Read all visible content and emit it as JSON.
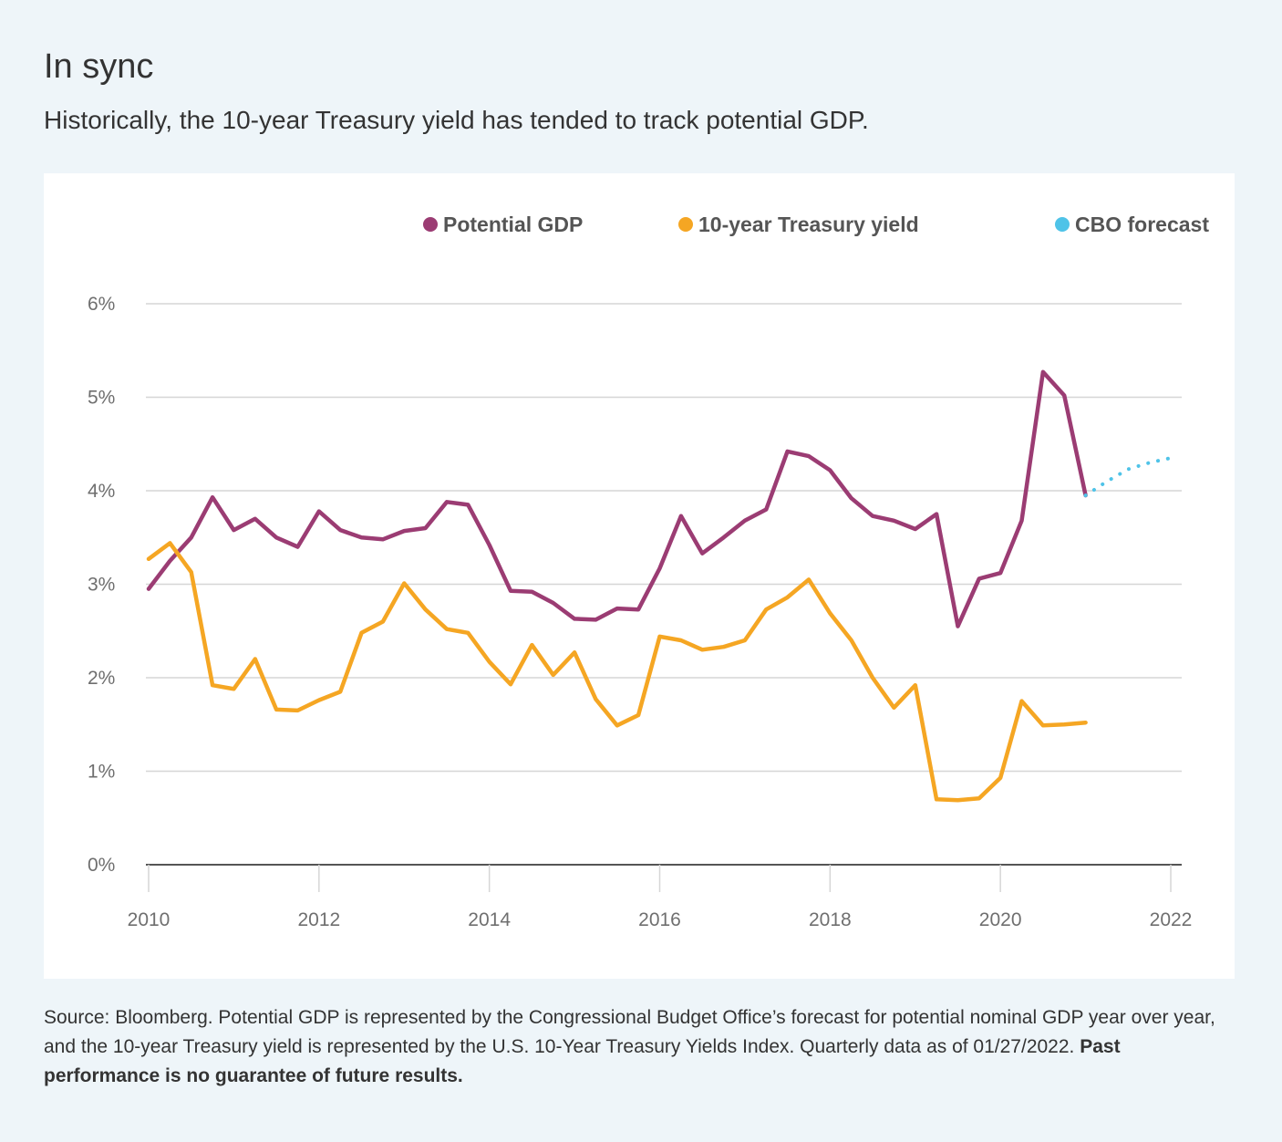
{
  "title": "In sync",
  "subtitle": "Historically, the 10-year Treasury yield has tended to track potential GDP.",
  "footnote": {
    "text": "Source: Bloomberg. Potential GDP is represented by the Congressional Budget Office’s forecast for potential nominal GDP year over year, and the 10-year Treasury yield is represented by the U.S. 10-Year Treasury Yields Index. Quarterly data as of 01/27/2022.",
    "bold": "Past performance is no guarantee of future results."
  },
  "colors": {
    "gdp": "#9b3c73",
    "yield": "#f5a623",
    "forecast": "#4fc3e8",
    "grid": "#d6d6d6",
    "axis": "#555555"
  },
  "chart_data": {
    "type": "line",
    "title": "",
    "xlabel": "",
    "ylabel": "",
    "xlim": [
      2010,
      2022
    ],
    "ylim": [
      0,
      6
    ],
    "y_ticks": [
      "0%",
      "1%",
      "2%",
      "3%",
      "4%",
      "5%",
      "6%"
    ],
    "x_ticks": [
      "2010",
      "2012",
      "2014",
      "2016",
      "2018",
      "2020",
      "2022"
    ],
    "legend": [
      "Potential GDP",
      "10-year Treasury yield",
      "CBO forecast"
    ],
    "legend_position": "top-right",
    "series": [
      {
        "name": "Potential GDP",
        "color_key": "gdp",
        "style": "solid",
        "points": [
          [
            2010.0,
            2.95
          ],
          [
            2010.25,
            3.25
          ],
          [
            2010.5,
            3.5
          ],
          [
            2010.75,
            3.93
          ],
          [
            2011.0,
            3.58
          ],
          [
            2011.25,
            3.7
          ],
          [
            2011.5,
            3.5
          ],
          [
            2011.75,
            3.4
          ],
          [
            2012.0,
            3.78
          ],
          [
            2012.25,
            3.58
          ],
          [
            2012.5,
            3.5
          ],
          [
            2012.75,
            3.48
          ],
          [
            2013.0,
            3.57
          ],
          [
            2013.25,
            3.6
          ],
          [
            2013.5,
            3.88
          ],
          [
            2013.75,
            3.85
          ],
          [
            2014.0,
            3.42
          ],
          [
            2014.25,
            2.93
          ],
          [
            2014.5,
            2.92
          ],
          [
            2014.75,
            2.8
          ],
          [
            2015.0,
            2.63
          ],
          [
            2015.25,
            2.62
          ],
          [
            2015.5,
            2.74
          ],
          [
            2015.75,
            2.73
          ],
          [
            2016.0,
            3.17
          ],
          [
            2016.25,
            3.73
          ],
          [
            2016.5,
            3.33
          ],
          [
            2016.75,
            3.5
          ],
          [
            2017.0,
            3.68
          ],
          [
            2017.25,
            3.8
          ],
          [
            2017.5,
            4.42
          ],
          [
            2017.75,
            4.37
          ],
          [
            2018.0,
            4.22
          ],
          [
            2018.25,
            3.92
          ],
          [
            2018.5,
            3.73
          ],
          [
            2018.75,
            3.68
          ],
          [
            2019.0,
            3.59
          ],
          [
            2019.25,
            3.75
          ],
          [
            2019.5,
            2.55
          ],
          [
            2019.75,
            3.06
          ],
          [
            2020.0,
            3.12
          ],
          [
            2020.25,
            3.68
          ],
          [
            2020.5,
            5.27
          ],
          [
            2020.75,
            5.02
          ],
          [
            2021.0,
            3.95
          ]
        ]
      },
      {
        "name": "10-year Treasury yield",
        "color_key": "yield",
        "style": "solid",
        "points": [
          [
            2010.0,
            3.27
          ],
          [
            2010.25,
            3.44
          ],
          [
            2010.5,
            3.13
          ],
          [
            2010.75,
            1.92
          ],
          [
            2011.0,
            1.88
          ],
          [
            2011.25,
            2.2
          ],
          [
            2011.5,
            1.66
          ],
          [
            2011.75,
            1.65
          ],
          [
            2012.0,
            1.76
          ],
          [
            2012.25,
            1.85
          ],
          [
            2012.5,
            2.48
          ],
          [
            2012.75,
            2.6
          ],
          [
            2013.0,
            3.01
          ],
          [
            2013.25,
            2.73
          ],
          [
            2013.5,
            2.52
          ],
          [
            2013.75,
            2.48
          ],
          [
            2014.0,
            2.17
          ],
          [
            2014.25,
            1.93
          ],
          [
            2014.5,
            2.35
          ],
          [
            2014.75,
            2.03
          ],
          [
            2015.0,
            2.27
          ],
          [
            2015.25,
            1.77
          ],
          [
            2015.5,
            1.49
          ],
          [
            2015.75,
            1.6
          ],
          [
            2016.0,
            2.44
          ],
          [
            2016.25,
            2.4
          ],
          [
            2016.5,
            2.3
          ],
          [
            2016.75,
            2.33
          ],
          [
            2017.0,
            2.4
          ],
          [
            2017.25,
            2.73
          ],
          [
            2017.5,
            2.86
          ],
          [
            2017.75,
            3.05
          ],
          [
            2018.0,
            2.69
          ],
          [
            2018.25,
            2.4
          ],
          [
            2018.5,
            2.0
          ],
          [
            2018.75,
            1.68
          ],
          [
            2019.0,
            1.92
          ],
          [
            2019.25,
            0.7
          ],
          [
            2019.5,
            0.69
          ],
          [
            2019.75,
            0.71
          ],
          [
            2020.0,
            0.93
          ],
          [
            2020.25,
            1.75
          ],
          [
            2020.5,
            1.49
          ],
          [
            2020.75,
            1.5
          ],
          [
            2021.0,
            1.52
          ]
        ]
      },
      {
        "name": "CBO forecast",
        "color_key": "forecast",
        "style": "dotted",
        "points": [
          [
            2021.0,
            3.95
          ],
          [
            2021.25,
            4.1
          ],
          [
            2021.5,
            4.23
          ],
          [
            2021.75,
            4.3
          ],
          [
            2022.0,
            4.35
          ]
        ]
      }
    ]
  }
}
